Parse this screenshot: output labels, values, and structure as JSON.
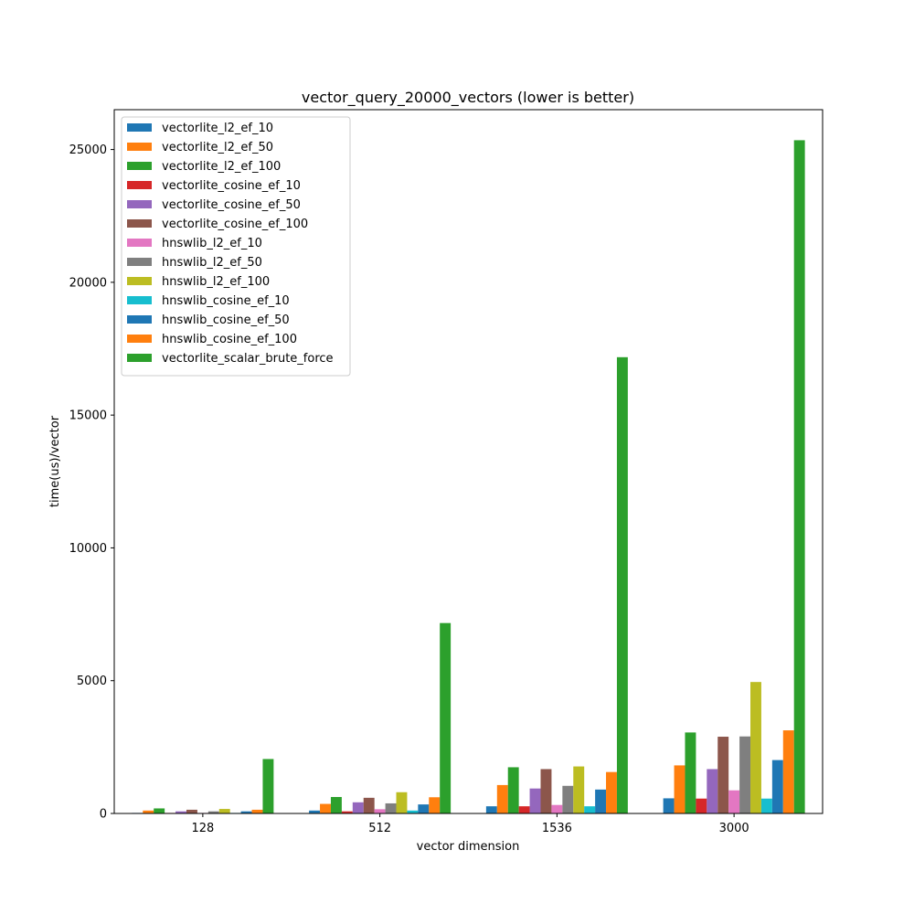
{
  "chart_data": {
    "type": "bar",
    "title": "vector_query_20000_vectors (lower is better)",
    "xlabel": "vector dimension",
    "ylabel": "time(us)/vector",
    "categories": [
      "128",
      "512",
      "1536",
      "3000"
    ],
    "ylim": [
      0,
      26500
    ],
    "yticks": [
      0,
      5000,
      10000,
      15000,
      20000,
      25000
    ],
    "legend_position": "upper-left",
    "grid": false,
    "series": [
      {
        "name": "vectorlite_l2_ef_10",
        "color": "#1f77b4",
        "values": [
          20,
          110,
          270,
          570
        ]
      },
      {
        "name": "vectorlite_l2_ef_50",
        "color": "#ff7f0e",
        "values": [
          110,
          360,
          1070,
          1810
        ]
      },
      {
        "name": "vectorlite_l2_ef_100",
        "color": "#2ca02c",
        "values": [
          190,
          620,
          1740,
          3050
        ]
      },
      {
        "name": "vectorlite_cosine_ef_10",
        "color": "#d62728",
        "values": [
          20,
          80,
          270,
          560
        ]
      },
      {
        "name": "vectorlite_cosine_ef_50",
        "color": "#9467bd",
        "values": [
          80,
          420,
          940,
          1670
        ]
      },
      {
        "name": "vectorlite_cosine_ef_100",
        "color": "#8c564b",
        "values": [
          140,
          590,
          1670,
          2890
        ]
      },
      {
        "name": "hnswlib_l2_ef_10",
        "color": "#e377c2",
        "values": [
          20,
          160,
          320,
          870
        ]
      },
      {
        "name": "hnswlib_l2_ef_50",
        "color": "#7f7f7f",
        "values": [
          80,
          380,
          1040,
          2900
        ]
      },
      {
        "name": "hnswlib_l2_ef_100",
        "color": "#bcbd22",
        "values": [
          170,
          800,
          1770,
          4950
        ]
      },
      {
        "name": "hnswlib_cosine_ef_10",
        "color": "#17becf",
        "values": [
          20,
          110,
          270,
          560
        ]
      },
      {
        "name": "hnswlib_cosine_ef_50",
        "color": "#1f77b4",
        "values": [
          80,
          340,
          900,
          2010
        ]
      },
      {
        "name": "hnswlib_cosine_ef_100",
        "color": "#ff7f0e",
        "values": [
          140,
          610,
          1560,
          3130
        ]
      },
      {
        "name": "vectorlite_scalar_brute_force",
        "color": "#2ca02c",
        "values": [
          2050,
          7170,
          17180,
          25350
        ]
      }
    ]
  }
}
